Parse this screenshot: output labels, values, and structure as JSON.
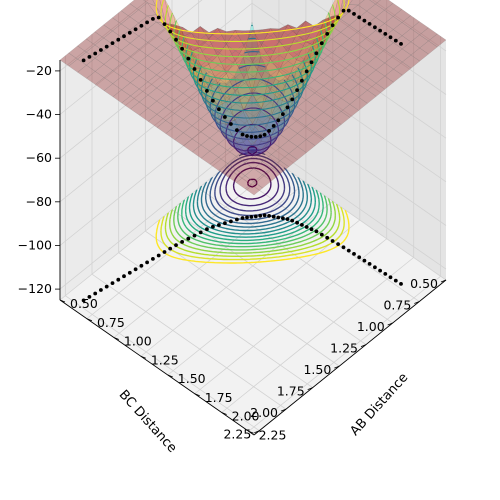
{
  "chart_data": {
    "type": "surface3d",
    "title": "",
    "projection": "3d",
    "elevation_view": "top-down oblique, rotated 45 degrees",
    "surface_colormap": "jet",
    "surface_alpha": 0.3,
    "contour_colormap": "viridis",
    "trajectory_color": "#000000",
    "axes": {
      "x": {
        "label": "AB Distance",
        "range": [
          0.5,
          2.3
        ],
        "ticks": [
          "0.50",
          "0.75",
          "1.00",
          "1.25",
          "1.50",
          "1.75",
          "2.00",
          "2.25"
        ]
      },
      "y": {
        "label": "BC Distance",
        "range": [
          0.5,
          2.3
        ],
        "ticks": [
          "0.50",
          "0.75",
          "1.00",
          "1.25",
          "1.50",
          "1.75",
          "2.00",
          "2.25"
        ]
      },
      "z": {
        "label": "",
        "range": [
          -125,
          -15
        ],
        "ticks": [
          "−20",
          "−40",
          "−60",
          "−80",
          "−100",
          "−120"
        ]
      }
    },
    "contour_levels": [
      -110,
      -105,
      -100,
      -95,
      -90,
      -85,
      -80,
      -75,
      -70,
      -65,
      -60,
      -55,
      -50,
      -45,
      -40,
      -35,
      -30,
      -25,
      -20
    ],
    "trajectory_on_surface": [
      {
        "ab": 0.62,
        "bc": 2.2
      },
      {
        "ab": 0.66,
        "bc": 1.95
      },
      {
        "ab": 0.7,
        "bc": 1.7
      },
      {
        "ab": 0.74,
        "bc": 1.45
      },
      {
        "ab": 0.8,
        "bc": 1.2
      },
      {
        "ab": 0.9,
        "bc": 1.0
      },
      {
        "ab": 1.0,
        "bc": 0.88
      },
      {
        "ab": 1.15,
        "bc": 0.8
      },
      {
        "ab": 1.35,
        "bc": 0.76
      },
      {
        "ab": 1.6,
        "bc": 0.74
      },
      {
        "ab": 1.85,
        "bc": 0.73
      },
      {
        "ab": 2.1,
        "bc": 0.72
      }
    ],
    "trajectory_projection": [
      {
        "ab": 0.62,
        "bc": 2.2
      },
      {
        "ab": 0.66,
        "bc": 1.95
      },
      {
        "ab": 0.7,
        "bc": 1.7
      },
      {
        "ab": 0.74,
        "bc": 1.45
      },
      {
        "ab": 0.8,
        "bc": 1.2
      },
      {
        "ab": 0.9,
        "bc": 1.0
      },
      {
        "ab": 1.0,
        "bc": 0.88
      },
      {
        "ab": 1.15,
        "bc": 0.8
      },
      {
        "ab": 1.35,
        "bc": 0.76
      },
      {
        "ab": 1.6,
        "bc": 0.74
      },
      {
        "ab": 1.85,
        "bc": 0.73
      },
      {
        "ab": 2.1,
        "bc": 0.72
      }
    ]
  }
}
